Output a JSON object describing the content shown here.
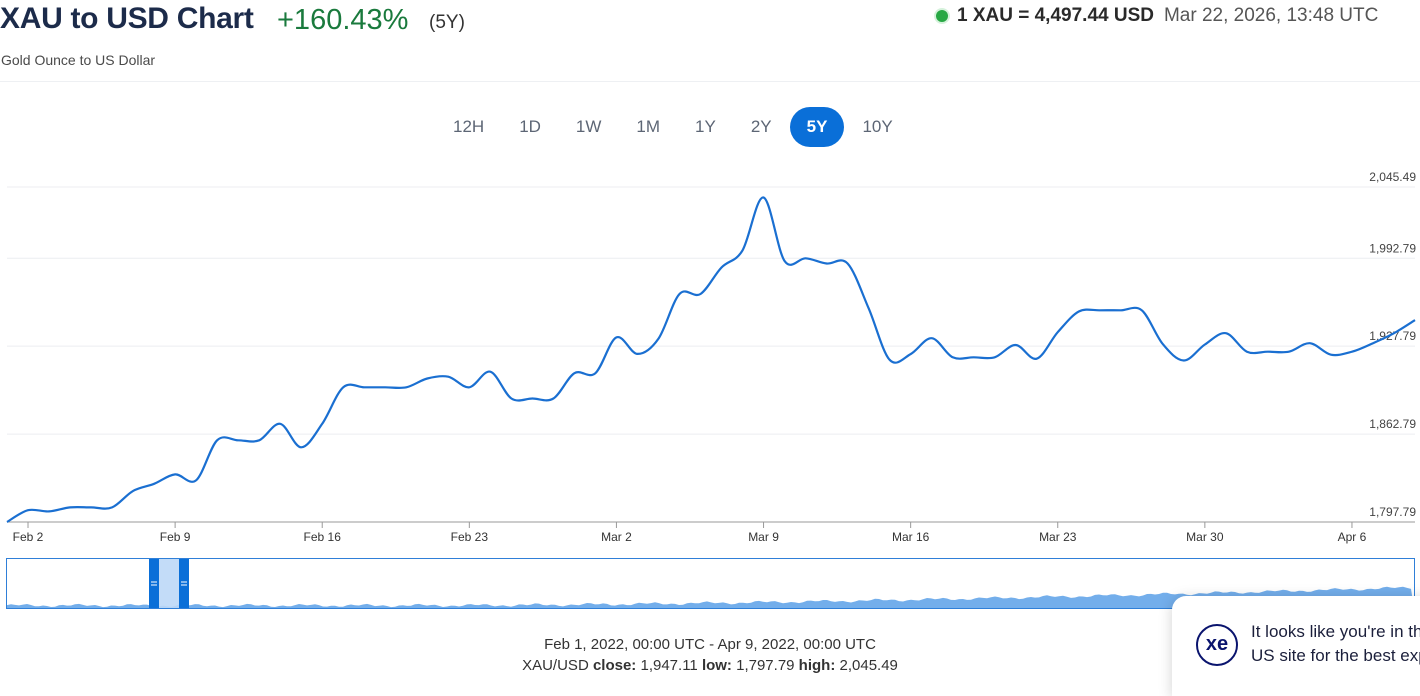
{
  "header": {
    "title": "XAU to USD Chart",
    "change": "+160.43%",
    "period": "(5Y)",
    "subtitle": "Gold Ounce to US Dollar"
  },
  "live": {
    "rate": "1 XAU = 4,497.44 USD",
    "timestamp": "Mar 22, 2026, 13:48 UTC",
    "status_color": "#27a844"
  },
  "tabs": [
    {
      "label": "12H",
      "active": false
    },
    {
      "label": "1D",
      "active": false
    },
    {
      "label": "1W",
      "active": false
    },
    {
      "label": "1M",
      "active": false
    },
    {
      "label": "1Y",
      "active": false
    },
    {
      "label": "2Y",
      "active": false
    },
    {
      "label": "5Y",
      "active": true
    },
    {
      "label": "10Y",
      "active": false
    }
  ],
  "chart_data": {
    "type": "line",
    "line_color": "#1a6fd1",
    "x_start": "Feb 1, 2022",
    "x_ticks": [
      "Feb 2",
      "Feb 9",
      "Feb 16",
      "Feb 23",
      "Mar 2",
      "Mar 9",
      "Mar 16",
      "Mar 23",
      "Mar 30",
      "Apr 6"
    ],
    "y_ticks": [
      2045.49,
      1992.79,
      1927.79,
      1862.79,
      1797.79
    ],
    "y_tick_labels": [
      "2,045.49",
      "1,992.79",
      "1,927.79",
      "1,862.79",
      "1,797.79"
    ],
    "ylim": [
      1797.79,
      2045.49
    ],
    "grid": true,
    "series": [
      {
        "values": [
          [
            "2022-02-01",
            1797.8
          ],
          [
            "2022-02-02",
            1806.5
          ],
          [
            "2022-02-03",
            1805.6
          ],
          [
            "2022-02-04",
            1808.6
          ],
          [
            "2022-02-05",
            1808.6
          ],
          [
            "2022-02-06",
            1808.6
          ],
          [
            "2022-02-07",
            1820.8
          ],
          [
            "2022-02-08",
            1826.0
          ],
          [
            "2022-02-09",
            1833.0
          ],
          [
            "2022-02-10",
            1828.6
          ],
          [
            "2022-02-11",
            1858.2
          ],
          [
            "2022-02-12",
            1858.2
          ],
          [
            "2022-02-13",
            1858.2
          ],
          [
            "2022-02-14",
            1870.4
          ],
          [
            "2022-02-15",
            1853.0
          ],
          [
            "2022-02-16",
            1870.4
          ],
          [
            "2022-02-17",
            1897.4
          ],
          [
            "2022-02-18",
            1897.4
          ],
          [
            "2022-02-19",
            1897.4
          ],
          [
            "2022-02-20",
            1897.4
          ],
          [
            "2022-02-21",
            1903.9
          ],
          [
            "2022-02-22",
            1905.2
          ],
          [
            "2022-02-23",
            1897.4
          ],
          [
            "2022-02-24",
            1908.9
          ],
          [
            "2022-02-25",
            1889.1
          ],
          [
            "2022-02-26",
            1889.1
          ],
          [
            "2022-02-27",
            1889.1
          ],
          [
            "2022-02-28",
            1907.8
          ],
          [
            "2022-03-01",
            1907.8
          ],
          [
            "2022-03-02",
            1934.3
          ],
          [
            "2022-03-03",
            1922.1
          ],
          [
            "2022-03-04",
            1933.4
          ],
          [
            "2022-03-05",
            1966.4
          ],
          [
            "2022-03-06",
            1966.4
          ],
          [
            "2022-03-07",
            1986.0
          ],
          [
            "2022-03-08",
            1998.6
          ],
          [
            "2022-03-09",
            2037.7
          ],
          [
            "2022-03-10",
            1990.8
          ],
          [
            "2022-03-11",
            1992.8
          ],
          [
            "2022-03-12",
            1988.9
          ],
          [
            "2022-03-13",
            1988.9
          ],
          [
            "2022-03-14",
            1955.9
          ],
          [
            "2022-03-15",
            1917.7
          ],
          [
            "2022-03-16",
            1921.9
          ],
          [
            "2022-03-17",
            1933.7
          ],
          [
            "2022-03-18",
            1919.6
          ],
          [
            "2022-03-19",
            1919.6
          ],
          [
            "2022-03-20",
            1919.6
          ],
          [
            "2022-03-21",
            1928.7
          ],
          [
            "2022-03-22",
            1918.5
          ],
          [
            "2022-03-23",
            1938.1
          ],
          [
            "2022-03-24",
            1953.4
          ],
          [
            "2022-03-25",
            1954.3
          ],
          [
            "2022-03-26",
            1954.3
          ],
          [
            "2022-03-27",
            1954.3
          ],
          [
            "2022-03-28",
            1929.3
          ],
          [
            "2022-03-29",
            1917.2
          ],
          [
            "2022-03-30",
            1929.0
          ],
          [
            "2022-03-31",
            1937.4
          ],
          [
            "2022-04-01",
            1923.7
          ],
          [
            "2022-04-02",
            1923.7
          ],
          [
            "2022-04-03",
            1923.7
          ],
          [
            "2022-04-04",
            1930.0
          ],
          [
            "2022-04-05",
            1921.5
          ],
          [
            "2022-04-06",
            1923.7
          ],
          [
            "2022-04-07",
            1930.0
          ],
          [
            "2022-04-08",
            1937.4
          ],
          [
            "2022-04-09",
            1947.1
          ]
        ]
      }
    ],
    "navigator_fill": "#5aa0e8"
  },
  "footer": {
    "range": "Feb 1, 2022, 00:00 UTC - Apr 9, 2022, 00:00 UTC",
    "pair": "XAU/USD",
    "close_label": "close:",
    "close_value": "1,947.11",
    "low_label": "low:",
    "low_value": "1,797.79",
    "high_label": "high:",
    "high_value": "2,045.49"
  },
  "toast": {
    "logo": "xe",
    "line1": "It looks like you're in the",
    "line2": "US site for the best experience"
  }
}
